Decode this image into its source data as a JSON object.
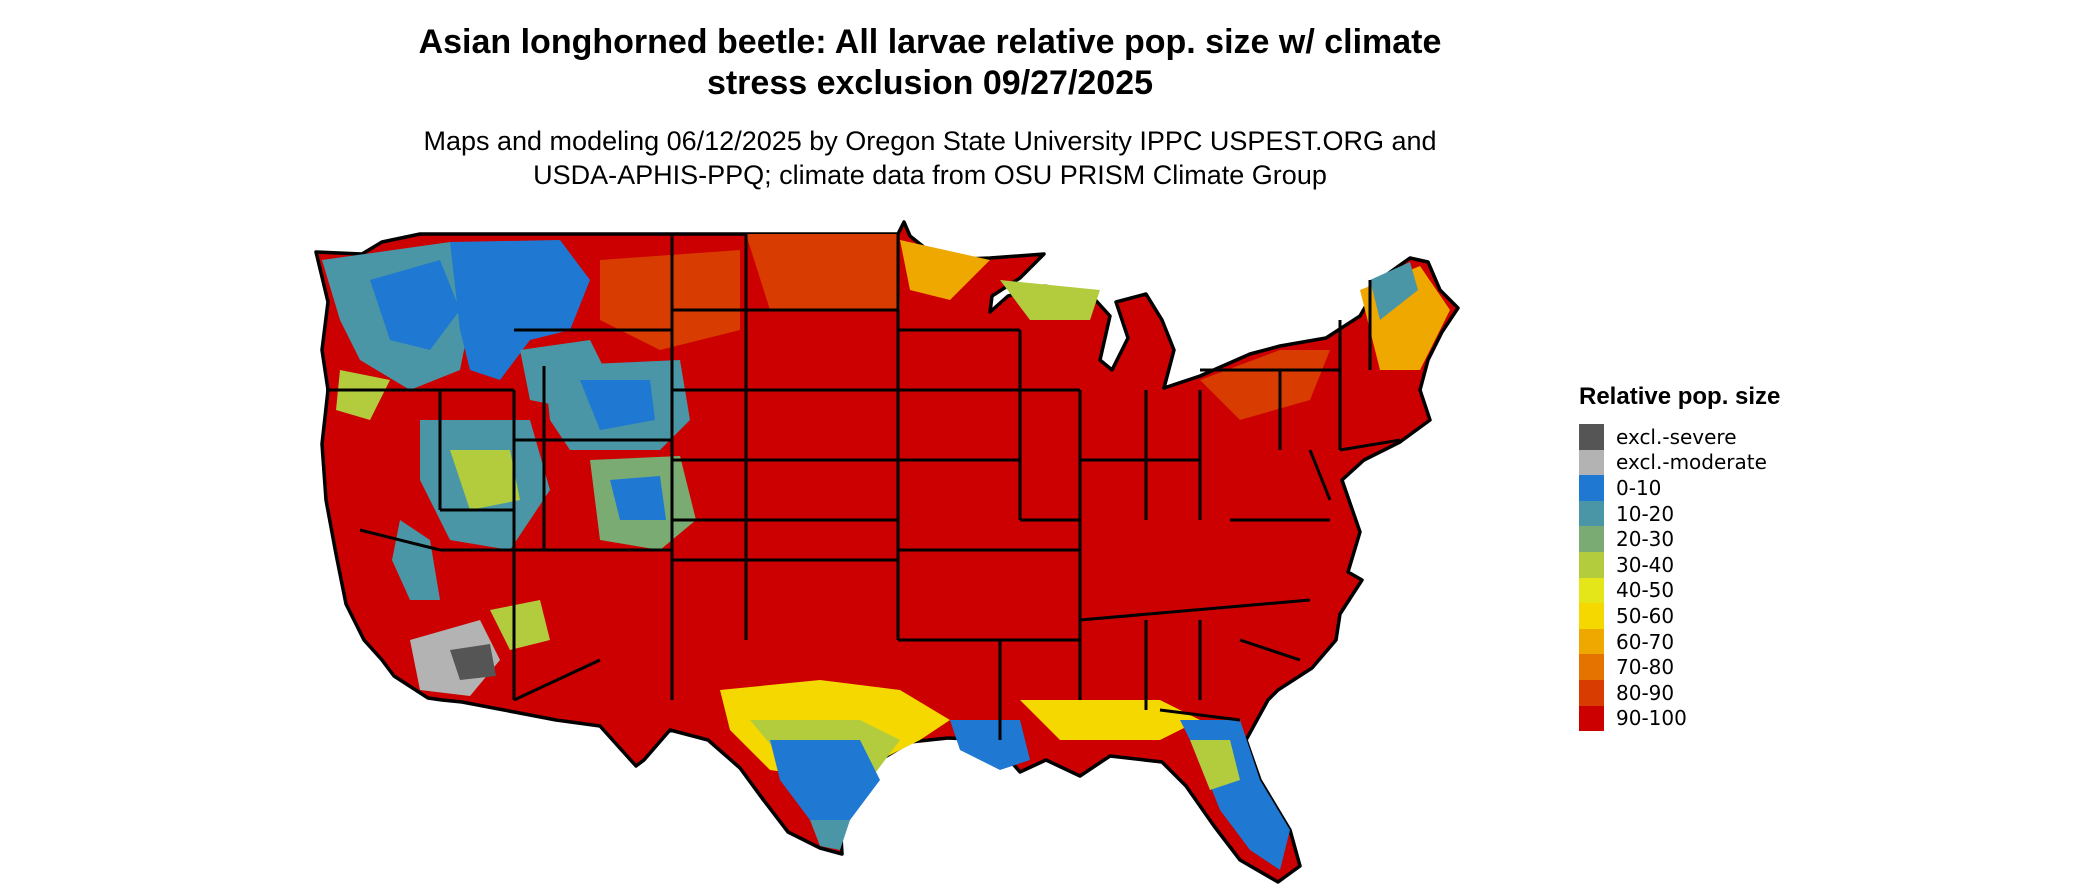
{
  "title": {
    "line1": "Asian longhorned beetle: All larvae relative pop. size w/ climate",
    "line2": "stress exclusion 09/27/2025"
  },
  "subtitle": {
    "line1": "Maps and modeling 06/12/2025 by Oregon State University IPPC USPEST.ORG and",
    "line2": "USDA-APHIS-PPQ; climate data from OSU PRISM Climate Group"
  },
  "map": {
    "region": "contiguous United States",
    "dominant_category": "90-100",
    "region_notes": [
      {
        "area": "Southern Texas and Gulf coast",
        "category": "0-10"
      },
      {
        "area": "Southern Florida",
        "category": "0-10"
      },
      {
        "area": "Rocky Mountains and Pacific Northwest highlands",
        "category": "0-10"
      },
      {
        "area": "Southern Arizona / Mojave desert",
        "category": "excl.-moderate"
      }
    ]
  },
  "legend": {
    "title": "Relative pop. size",
    "items": [
      {
        "label": "excl.-severe",
        "color": "#555555"
      },
      {
        "label": "excl.-moderate",
        "color": "#b3b3b3"
      },
      {
        "label": "0-10",
        "color": "#1f78d1"
      },
      {
        "label": "10-20",
        "color": "#4a96a6"
      },
      {
        "label": "20-30",
        "color": "#7aab72"
      },
      {
        "label": "30-40",
        "color": "#b2cc3e"
      },
      {
        "label": "40-50",
        "color": "#e4e61a"
      },
      {
        "label": "50-60",
        "color": "#f5d800"
      },
      {
        "label": "60-70",
        "color": "#efa800"
      },
      {
        "label": "70-80",
        "color": "#e57300"
      },
      {
        "label": "80-90",
        "color": "#d83c00"
      },
      {
        "label": "90-100",
        "color": "#cc0000"
      }
    ]
  }
}
